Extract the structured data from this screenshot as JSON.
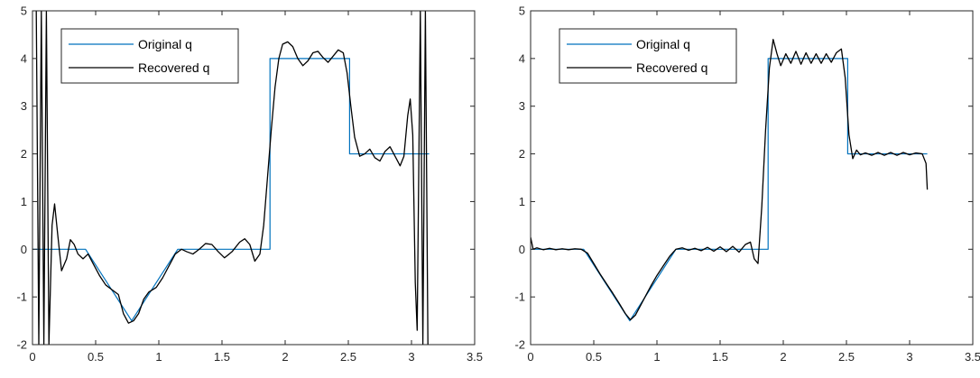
{
  "chart_data": [
    {
      "type": "line",
      "title": "",
      "xlabel": "",
      "ylabel": "",
      "xlim": [
        0,
        3.5
      ],
      "ylim": [
        -2,
        5
      ],
      "xticks": [
        "0",
        "0.5",
        "1",
        "1.5",
        "2",
        "2.5",
        "3",
        "3.5"
      ],
      "yticks": [
        "-2",
        "-1",
        "0",
        "1",
        "2",
        "3",
        "4",
        "5"
      ],
      "grid": false,
      "legend_position": "top-left",
      "series": [
        {
          "name": "Original q",
          "color": "#0072BD",
          "step": true,
          "points": [
            [
              0,
              0
            ],
            [
              0.42,
              0
            ],
            [
              0.785,
              -1.5
            ],
            [
              1.15,
              0
            ],
            [
              1.88,
              0
            ],
            [
              1.88,
              4
            ],
            [
              2.51,
              4
            ],
            [
              2.51,
              2
            ],
            [
              3.14,
              2
            ]
          ]
        },
        {
          "name": "Recovered q",
          "color": "#000000",
          "points": [
            [
              0.03,
              5
            ],
            [
              0.05,
              -2
            ],
            [
              0.07,
              5
            ],
            [
              0.09,
              -2
            ],
            [
              0.11,
              5
            ],
            [
              0.13,
              -2
            ],
            [
              0.155,
              0.5
            ],
            [
              0.175,
              0.95
            ],
            [
              0.2,
              0.3
            ],
            [
              0.23,
              -0.45
            ],
            [
              0.27,
              -0.2
            ],
            [
              0.3,
              0.2
            ],
            [
              0.33,
              0.1
            ],
            [
              0.36,
              -0.1
            ],
            [
              0.4,
              -0.2
            ],
            [
              0.44,
              -0.1
            ],
            [
              0.48,
              -0.3
            ],
            [
              0.53,
              -0.55
            ],
            [
              0.58,
              -0.75
            ],
            [
              0.63,
              -0.85
            ],
            [
              0.68,
              -0.95
            ],
            [
              0.72,
              -1.35
            ],
            [
              0.76,
              -1.55
            ],
            [
              0.8,
              -1.5
            ],
            [
              0.84,
              -1.35
            ],
            [
              0.88,
              -1.05
            ],
            [
              0.92,
              -0.9
            ],
            [
              0.98,
              -0.8
            ],
            [
              1.03,
              -0.6
            ],
            [
              1.08,
              -0.35
            ],
            [
              1.13,
              -0.1
            ],
            [
              1.18,
              0.0
            ],
            [
              1.22,
              -0.05
            ],
            [
              1.27,
              -0.1
            ],
            [
              1.32,
              0.0
            ],
            [
              1.37,
              0.12
            ],
            [
              1.42,
              0.1
            ],
            [
              1.47,
              -0.05
            ],
            [
              1.52,
              -0.18
            ],
            [
              1.58,
              -0.05
            ],
            [
              1.64,
              0.15
            ],
            [
              1.68,
              0.22
            ],
            [
              1.72,
              0.1
            ],
            [
              1.76,
              -0.25
            ],
            [
              1.8,
              -0.1
            ],
            [
              1.83,
              0.5
            ],
            [
              1.86,
              1.5
            ],
            [
              1.89,
              2.5
            ],
            [
              1.92,
              3.4
            ],
            [
              1.95,
              4.0
            ],
            [
              1.98,
              4.3
            ],
            [
              2.02,
              4.35
            ],
            [
              2.06,
              4.25
            ],
            [
              2.1,
              4.0
            ],
            [
              2.14,
              3.85
            ],
            [
              2.18,
              3.95
            ],
            [
              2.22,
              4.12
            ],
            [
              2.26,
              4.15
            ],
            [
              2.3,
              4.02
            ],
            [
              2.34,
              3.92
            ],
            [
              2.38,
              4.05
            ],
            [
              2.42,
              4.18
            ],
            [
              2.46,
              4.12
            ],
            [
              2.49,
              3.7
            ],
            [
              2.52,
              3.0
            ],
            [
              2.55,
              2.35
            ],
            [
              2.59,
              1.95
            ],
            [
              2.63,
              2.0
            ],
            [
              2.67,
              2.1
            ],
            [
              2.71,
              1.92
            ],
            [
              2.75,
              1.85
            ],
            [
              2.79,
              2.05
            ],
            [
              2.83,
              2.15
            ],
            [
              2.87,
              1.95
            ],
            [
              2.91,
              1.75
            ],
            [
              2.94,
              1.95
            ],
            [
              2.97,
              2.8
            ],
            [
              2.99,
              3.15
            ],
            [
              3.01,
              2.4
            ],
            [
              3.03,
              -0.7
            ],
            [
              3.045,
              -1.7
            ],
            [
              3.07,
              5
            ],
            [
              3.09,
              -2
            ],
            [
              3.11,
              5
            ],
            [
              3.13,
              -2
            ]
          ]
        }
      ]
    },
    {
      "type": "line",
      "title": "",
      "xlabel": "",
      "ylabel": "",
      "xlim": [
        0,
        3.5
      ],
      "ylim": [
        -2,
        5
      ],
      "xticks": [
        "0",
        "0.5",
        "1",
        "1.5",
        "2",
        "2.5",
        "3",
        "3.5"
      ],
      "yticks": [
        "-2",
        "-1",
        "0",
        "1",
        "2",
        "3",
        "4",
        "5"
      ],
      "grid": false,
      "legend_position": "top-left",
      "series": [
        {
          "name": "Original q",
          "color": "#0072BD",
          "step": true,
          "points": [
            [
              0,
              0
            ],
            [
              0.42,
              0
            ],
            [
              0.785,
              -1.5
            ],
            [
              1.15,
              0
            ],
            [
              1.88,
              0
            ],
            [
              1.88,
              4
            ],
            [
              2.51,
              4
            ],
            [
              2.51,
              2
            ],
            [
              3.14,
              2
            ]
          ]
        },
        {
          "name": "Recovered q",
          "color": "#000000",
          "points": [
            [
              0.0,
              0.25
            ],
            [
              0.02,
              0.0
            ],
            [
              0.05,
              0.03
            ],
            [
              0.1,
              -0.01
            ],
            [
              0.15,
              0.02
            ],
            [
              0.2,
              -0.01
            ],
            [
              0.25,
              0.01
            ],
            [
              0.3,
              -0.01
            ],
            [
              0.35,
              0.01
            ],
            [
              0.4,
              0.0
            ],
            [
              0.45,
              -0.08
            ],
            [
              0.5,
              -0.3
            ],
            [
              0.55,
              -0.52
            ],
            [
              0.6,
              -0.72
            ],
            [
              0.65,
              -0.92
            ],
            [
              0.7,
              -1.13
            ],
            [
              0.75,
              -1.35
            ],
            [
              0.79,
              -1.48
            ],
            [
              0.83,
              -1.38
            ],
            [
              0.87,
              -1.18
            ],
            [
              0.91,
              -0.98
            ],
            [
              0.95,
              -0.78
            ],
            [
              1.0,
              -0.55
            ],
            [
              1.05,
              -0.35
            ],
            [
              1.1,
              -0.15
            ],
            [
              1.15,
              0.0
            ],
            [
              1.2,
              0.03
            ],
            [
              1.25,
              -0.02
            ],
            [
              1.3,
              0.02
            ],
            [
              1.35,
              -0.03
            ],
            [
              1.4,
              0.04
            ],
            [
              1.45,
              -0.04
            ],
            [
              1.5,
              0.05
            ],
            [
              1.55,
              -0.05
            ],
            [
              1.6,
              0.06
            ],
            [
              1.65,
              -0.06
            ],
            [
              1.7,
              0.1
            ],
            [
              1.74,
              0.15
            ],
            [
              1.77,
              -0.2
            ],
            [
              1.8,
              -0.3
            ],
            [
              1.83,
              0.9
            ],
            [
              1.86,
              2.5
            ],
            [
              1.89,
              3.8
            ],
            [
              1.92,
              4.4
            ],
            [
              1.95,
              4.1
            ],
            [
              1.98,
              3.85
            ],
            [
              2.02,
              4.1
            ],
            [
              2.06,
              3.9
            ],
            [
              2.1,
              4.15
            ],
            [
              2.14,
              3.88
            ],
            [
              2.18,
              4.12
            ],
            [
              2.22,
              3.9
            ],
            [
              2.26,
              4.1
            ],
            [
              2.3,
              3.9
            ],
            [
              2.34,
              4.1
            ],
            [
              2.38,
              3.92
            ],
            [
              2.42,
              4.12
            ],
            [
              2.46,
              4.2
            ],
            [
              2.49,
              3.6
            ],
            [
              2.52,
              2.4
            ],
            [
              2.55,
              1.9
            ],
            [
              2.58,
              2.08
            ],
            [
              2.61,
              1.98
            ],
            [
              2.65,
              2.02
            ],
            [
              2.7,
              1.97
            ],
            [
              2.75,
              2.03
            ],
            [
              2.8,
              1.97
            ],
            [
              2.85,
              2.03
            ],
            [
              2.9,
              1.97
            ],
            [
              2.95,
              2.03
            ],
            [
              3.0,
              1.98
            ],
            [
              3.05,
              2.02
            ],
            [
              3.1,
              2.0
            ],
            [
              3.13,
              1.8
            ],
            [
              3.14,
              1.25
            ]
          ]
        }
      ]
    }
  ]
}
